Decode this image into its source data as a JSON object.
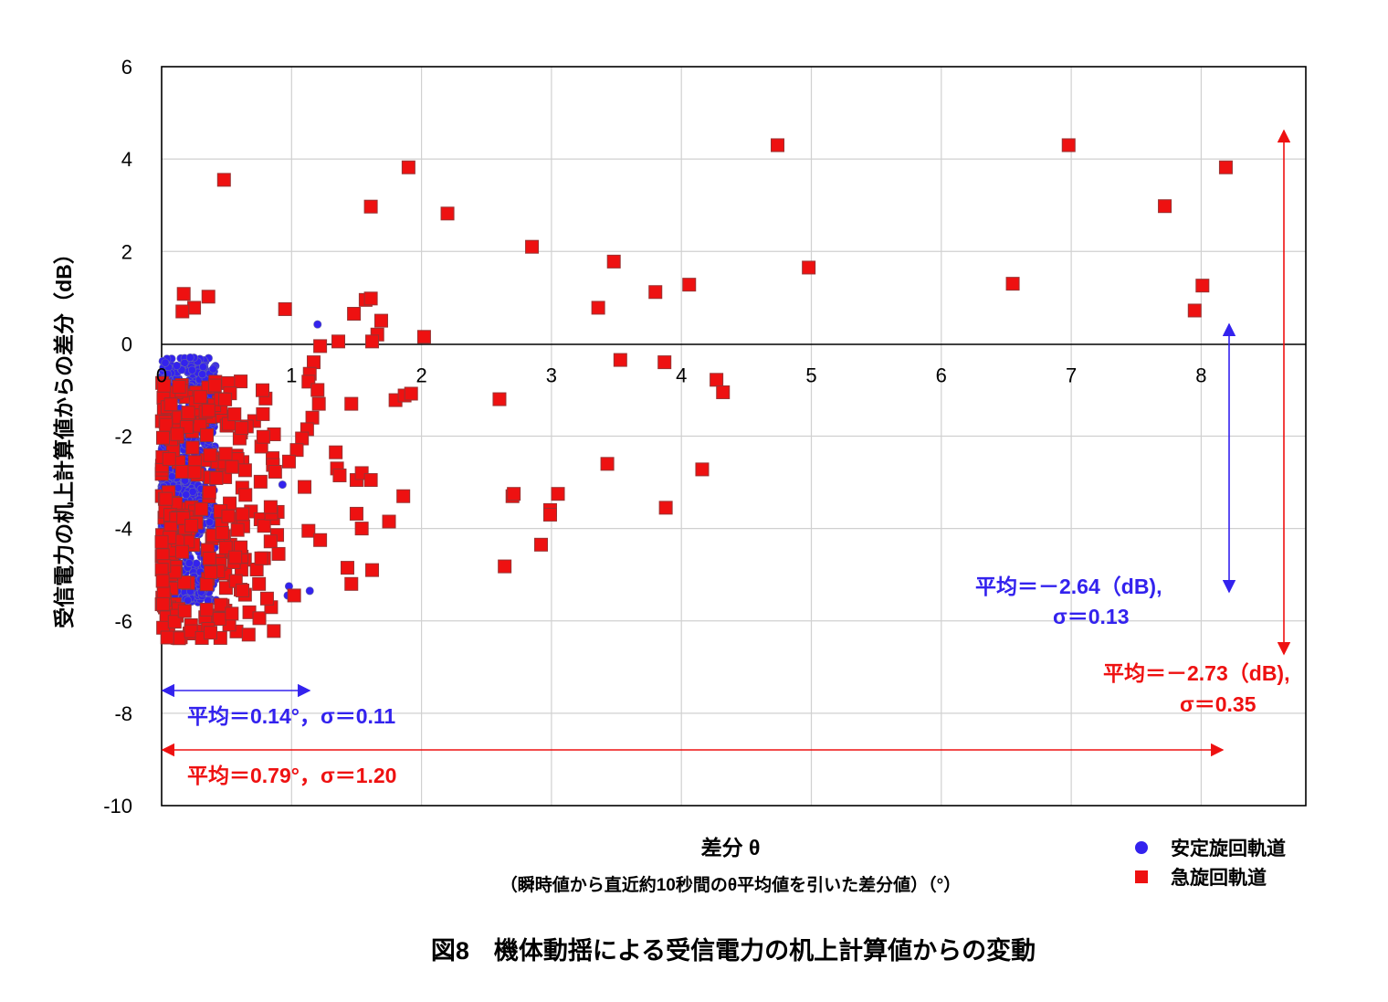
{
  "chart_data": {
    "type": "scatter",
    "title": "",
    "caption": "図8　機体動揺による受信電力の机上計算値からの変動",
    "xlabel": "差分 θ",
    "xlabel_sub": "（瞬時値から直近約10秒間のθ平均値を引いた差分値）（°）",
    "ylabel": "受信電力の机上計算値からの差分（dB）",
    "xlim": [
      0,
      8.8
    ],
    "ylim": [
      -10,
      6
    ],
    "x_ticks": [
      "0",
      "1",
      "2",
      "3",
      "4",
      "5",
      "6",
      "7",
      "8"
    ],
    "y_ticks": [
      "6",
      "4",
      "2",
      "0",
      "-2",
      "-4",
      "-6",
      "-8",
      "-10"
    ],
    "grid": true,
    "legend_position": "bottom-right",
    "colors": {
      "stable": "#3322ee",
      "rapid": "#ee1111",
      "rapid_edge": "#993333",
      "grid": "#d0d0d0"
    },
    "series": [
      {
        "name": "安定旋回軌道",
        "marker": "circle",
        "cluster": {
          "x_range": [
            0.0,
            0.42
          ],
          "y_range": [
            -5.6,
            -0.3
          ],
          "count": 900
        },
        "points": [
          [
            1.2,
            0.42
          ],
          [
            0.22,
            -0.3
          ],
          [
            0.32,
            -0.5
          ],
          [
            0.38,
            -1.1
          ],
          [
            0.42,
            -2.4
          ],
          [
            0.36,
            -3.4
          ],
          [
            0.4,
            -4.6
          ],
          [
            0.3,
            -5.1
          ],
          [
            0.42,
            -5.55
          ],
          [
            0.35,
            -5.0
          ],
          [
            0.93,
            -3.05
          ],
          [
            0.98,
            -5.25
          ],
          [
            0.97,
            -5.45
          ],
          [
            1.14,
            -5.35
          ],
          [
            0.45,
            -3.9
          ]
        ]
      },
      {
        "name": "急旋回軌道",
        "marker": "square",
        "cluster": {
          "x_range": [
            0.0,
            0.9
          ],
          "y_range": [
            -6.4,
            -0.8
          ],
          "count": 260
        },
        "points": [
          [
            0.48,
            3.55
          ],
          [
            0.17,
            1.08
          ],
          [
            0.36,
            1.02
          ],
          [
            0.25,
            0.78
          ],
          [
            0.16,
            0.7
          ],
          [
            0.95,
            0.75
          ],
          [
            1.22,
            -0.05
          ],
          [
            1.17,
            -0.4
          ],
          [
            1.14,
            -0.65
          ],
          [
            1.13,
            -0.82
          ],
          [
            1.2,
            -1.0
          ],
          [
            1.21,
            -1.3
          ],
          [
            1.16,
            -1.6
          ],
          [
            1.12,
            -1.85
          ],
          [
            1.08,
            -2.05
          ],
          [
            1.04,
            -2.3
          ],
          [
            0.98,
            -2.55
          ],
          [
            1.1,
            -3.1
          ],
          [
            1.13,
            -4.05
          ],
          [
            1.22,
            -4.25
          ],
          [
            1.02,
            -5.45
          ],
          [
            0.9,
            -4.55
          ],
          [
            1.36,
            0.05
          ],
          [
            1.48,
            0.65
          ],
          [
            1.57,
            0.95
          ],
          [
            1.61,
            0.98
          ],
          [
            1.69,
            0.5
          ],
          [
            1.66,
            0.2
          ],
          [
            1.62,
            0.05
          ],
          [
            1.9,
            3.82
          ],
          [
            1.61,
            2.97
          ],
          [
            2.2,
            2.82
          ],
          [
            2.85,
            2.1
          ],
          [
            2.02,
            0.15
          ],
          [
            1.46,
            -1.3
          ],
          [
            1.8,
            -1.22
          ],
          [
            1.87,
            -1.12
          ],
          [
            1.92,
            -1.08
          ],
          [
            1.34,
            -2.35
          ],
          [
            1.35,
            -2.7
          ],
          [
            1.37,
            -2.85
          ],
          [
            1.5,
            -2.95
          ],
          [
            1.54,
            -2.8
          ],
          [
            1.61,
            -2.95
          ],
          [
            1.5,
            -3.68
          ],
          [
            1.54,
            -4.0
          ],
          [
            1.75,
            -3.85
          ],
          [
            1.86,
            -3.3
          ],
          [
            1.43,
            -4.85
          ],
          [
            1.46,
            -5.2
          ],
          [
            1.62,
            -4.9
          ],
          [
            2.6,
            -1.2
          ],
          [
            2.7,
            -3.3
          ],
          [
            2.71,
            -3.25
          ],
          [
            2.99,
            -3.6
          ],
          [
            2.99,
            -3.7
          ],
          [
            3.05,
            -3.25
          ],
          [
            2.92,
            -4.35
          ],
          [
            2.64,
            -4.82
          ],
          [
            3.43,
            -2.6
          ],
          [
            3.53,
            -0.35
          ],
          [
            3.36,
            0.78
          ],
          [
            3.48,
            1.78
          ],
          [
            3.8,
            1.12
          ],
          [
            3.87,
            -0.4
          ],
          [
            3.88,
            -3.55
          ],
          [
            4.06,
            1.28
          ],
          [
            4.16,
            -2.72
          ],
          [
            4.27,
            -0.78
          ],
          [
            4.32,
            -1.05
          ],
          [
            4.74,
            4.3
          ],
          [
            4.98,
            1.65
          ],
          [
            6.55,
            1.3
          ],
          [
            6.98,
            4.3
          ],
          [
            7.72,
            2.98
          ],
          [
            7.95,
            0.72
          ],
          [
            8.01,
            1.26
          ],
          [
            8.19,
            3.82
          ]
        ]
      }
    ],
    "annotations": {
      "stable_x": "平均＝0.14°，σ＝0.11",
      "rapid_x": "平均＝0.79°，σ＝1.20",
      "stable_y_line1": "平均＝－2.64（dB),",
      "stable_y_line2": "σ＝0.13",
      "rapid_y_line1": "平均＝－2.73（dB),",
      "rapid_y_line2": "σ＝0.35"
    }
  }
}
